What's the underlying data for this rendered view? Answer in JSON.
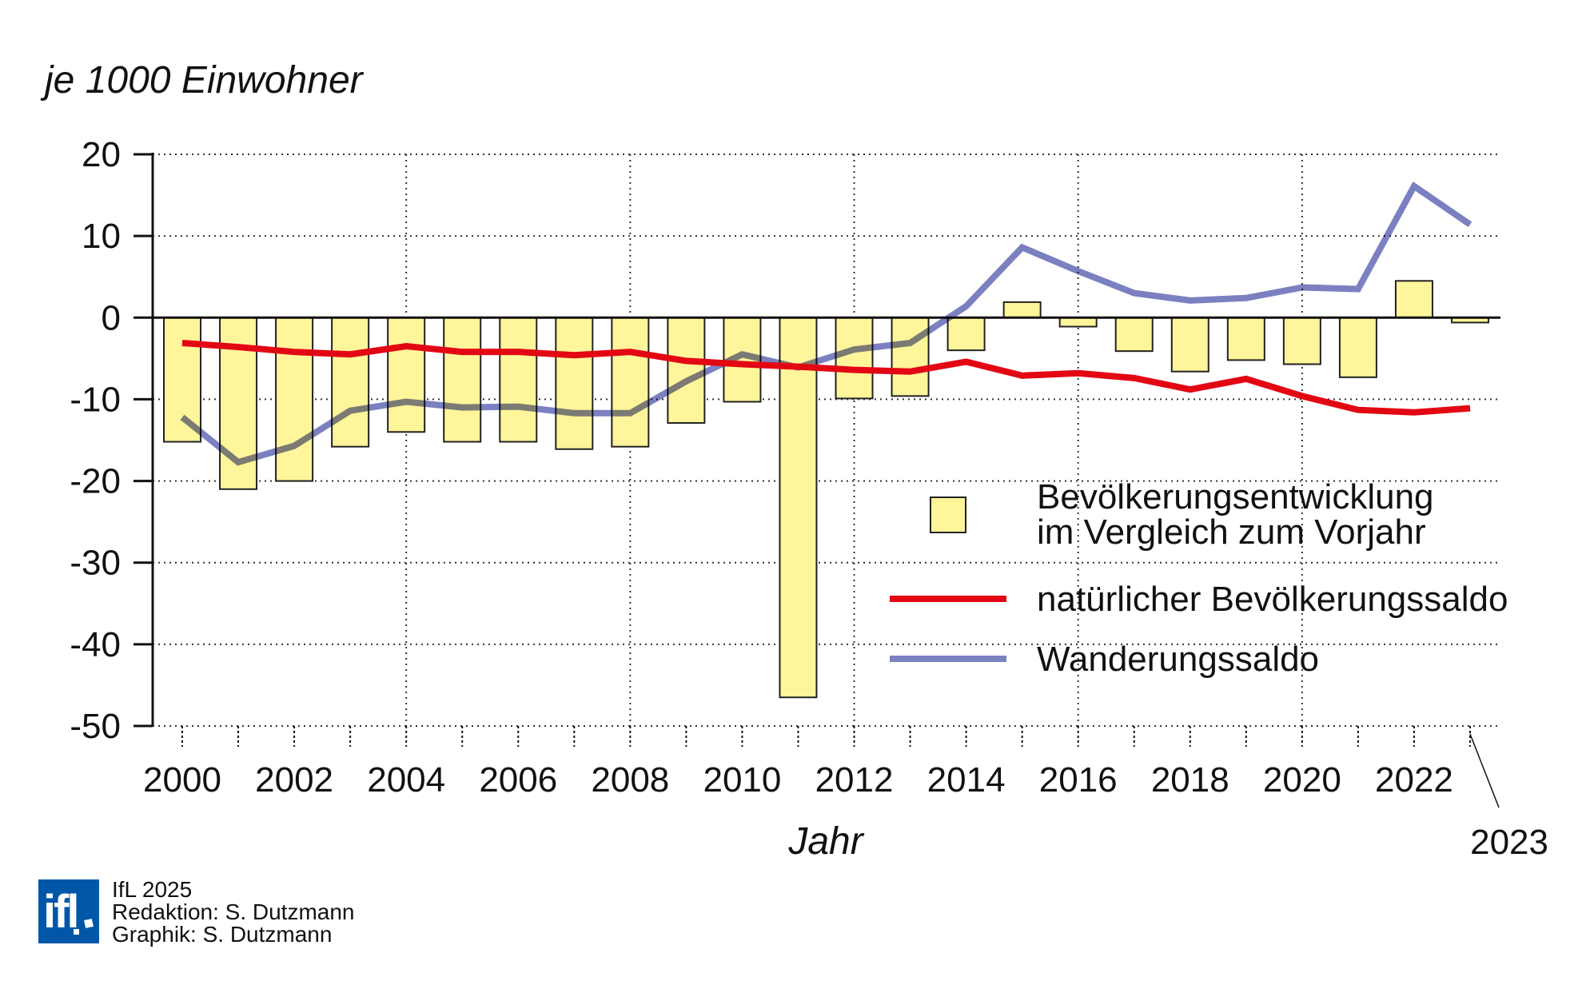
{
  "chart_data": {
    "type": "bar+line",
    "ylabel": "je 1000 Einwohner",
    "xlabel": "Jahr",
    "ylim": [
      -50,
      20
    ],
    "yticks": [
      20,
      10,
      0,
      -10,
      -20,
      -30,
      -40,
      -50
    ],
    "xtick_labels": [
      "2000",
      "2002",
      "2004",
      "2006",
      "2008",
      "2010",
      "2012",
      "2014",
      "2016",
      "2018",
      "2020",
      "2022"
    ],
    "last_year_label": "2023",
    "grid": true,
    "legend_placement": "right-middle",
    "x": [
      2000,
      2001,
      2002,
      2003,
      2004,
      2005,
      2006,
      2007,
      2008,
      2009,
      2010,
      2011,
      2012,
      2013,
      2014,
      2015,
      2016,
      2017,
      2018,
      2019,
      2020,
      2021,
      2022,
      2023
    ],
    "series": [
      {
        "name": "Bevölkerungsentwicklung im Vergleich zum Vorjahr",
        "legend_lines": [
          "Bevölkerungsentwicklung",
          "im Vergleich zum Vorjahr"
        ],
        "kind": "bar",
        "color": "#fff59a",
        "values": [
          -15.2,
          -21.0,
          -20.0,
          -15.8,
          -14.0,
          -15.2,
          -15.2,
          -16.1,
          -15.8,
          -12.9,
          -10.3,
          -46.5,
          -9.9,
          -9.6,
          -4.0,
          1.9,
          -1.1,
          -4.1,
          -6.6,
          -5.2,
          -5.7,
          -7.3,
          4.5,
          -0.6
        ]
      },
      {
        "name": "natürlicher Bevölkerungssaldo",
        "kind": "line",
        "color": "#e30613",
        "values": [
          -3.1,
          -3.6,
          -4.2,
          -4.5,
          -3.5,
          -4.2,
          -4.2,
          -4.6,
          -4.2,
          -5.3,
          -5.7,
          -6.0,
          -6.4,
          -6.6,
          -5.4,
          -7.1,
          -6.8,
          -7.4,
          -8.8,
          -7.5,
          -9.6,
          -11.3,
          -11.6,
          -11.1
        ]
      },
      {
        "name": "Wanderungssaldo",
        "kind": "line",
        "color": "#7b80c0",
        "values": [
          -12.2,
          -17.7,
          -15.7,
          -11.4,
          -10.3,
          -11.0,
          -10.9,
          -11.7,
          -11.7,
          -7.8,
          -4.5,
          -6.1,
          -3.9,
          -3.1,
          1.4,
          8.6,
          5.7,
          3.0,
          2.1,
          2.4,
          3.7,
          3.5,
          16.1,
          11.4
        ]
      }
    ]
  },
  "footer": {
    "logo_text": "ifl",
    "logo_color": "#0057a8",
    "lines": [
      "IfL 2025",
      "Redaktion: S. Dutzmann",
      "Graphik: S. Dutzmann"
    ]
  }
}
